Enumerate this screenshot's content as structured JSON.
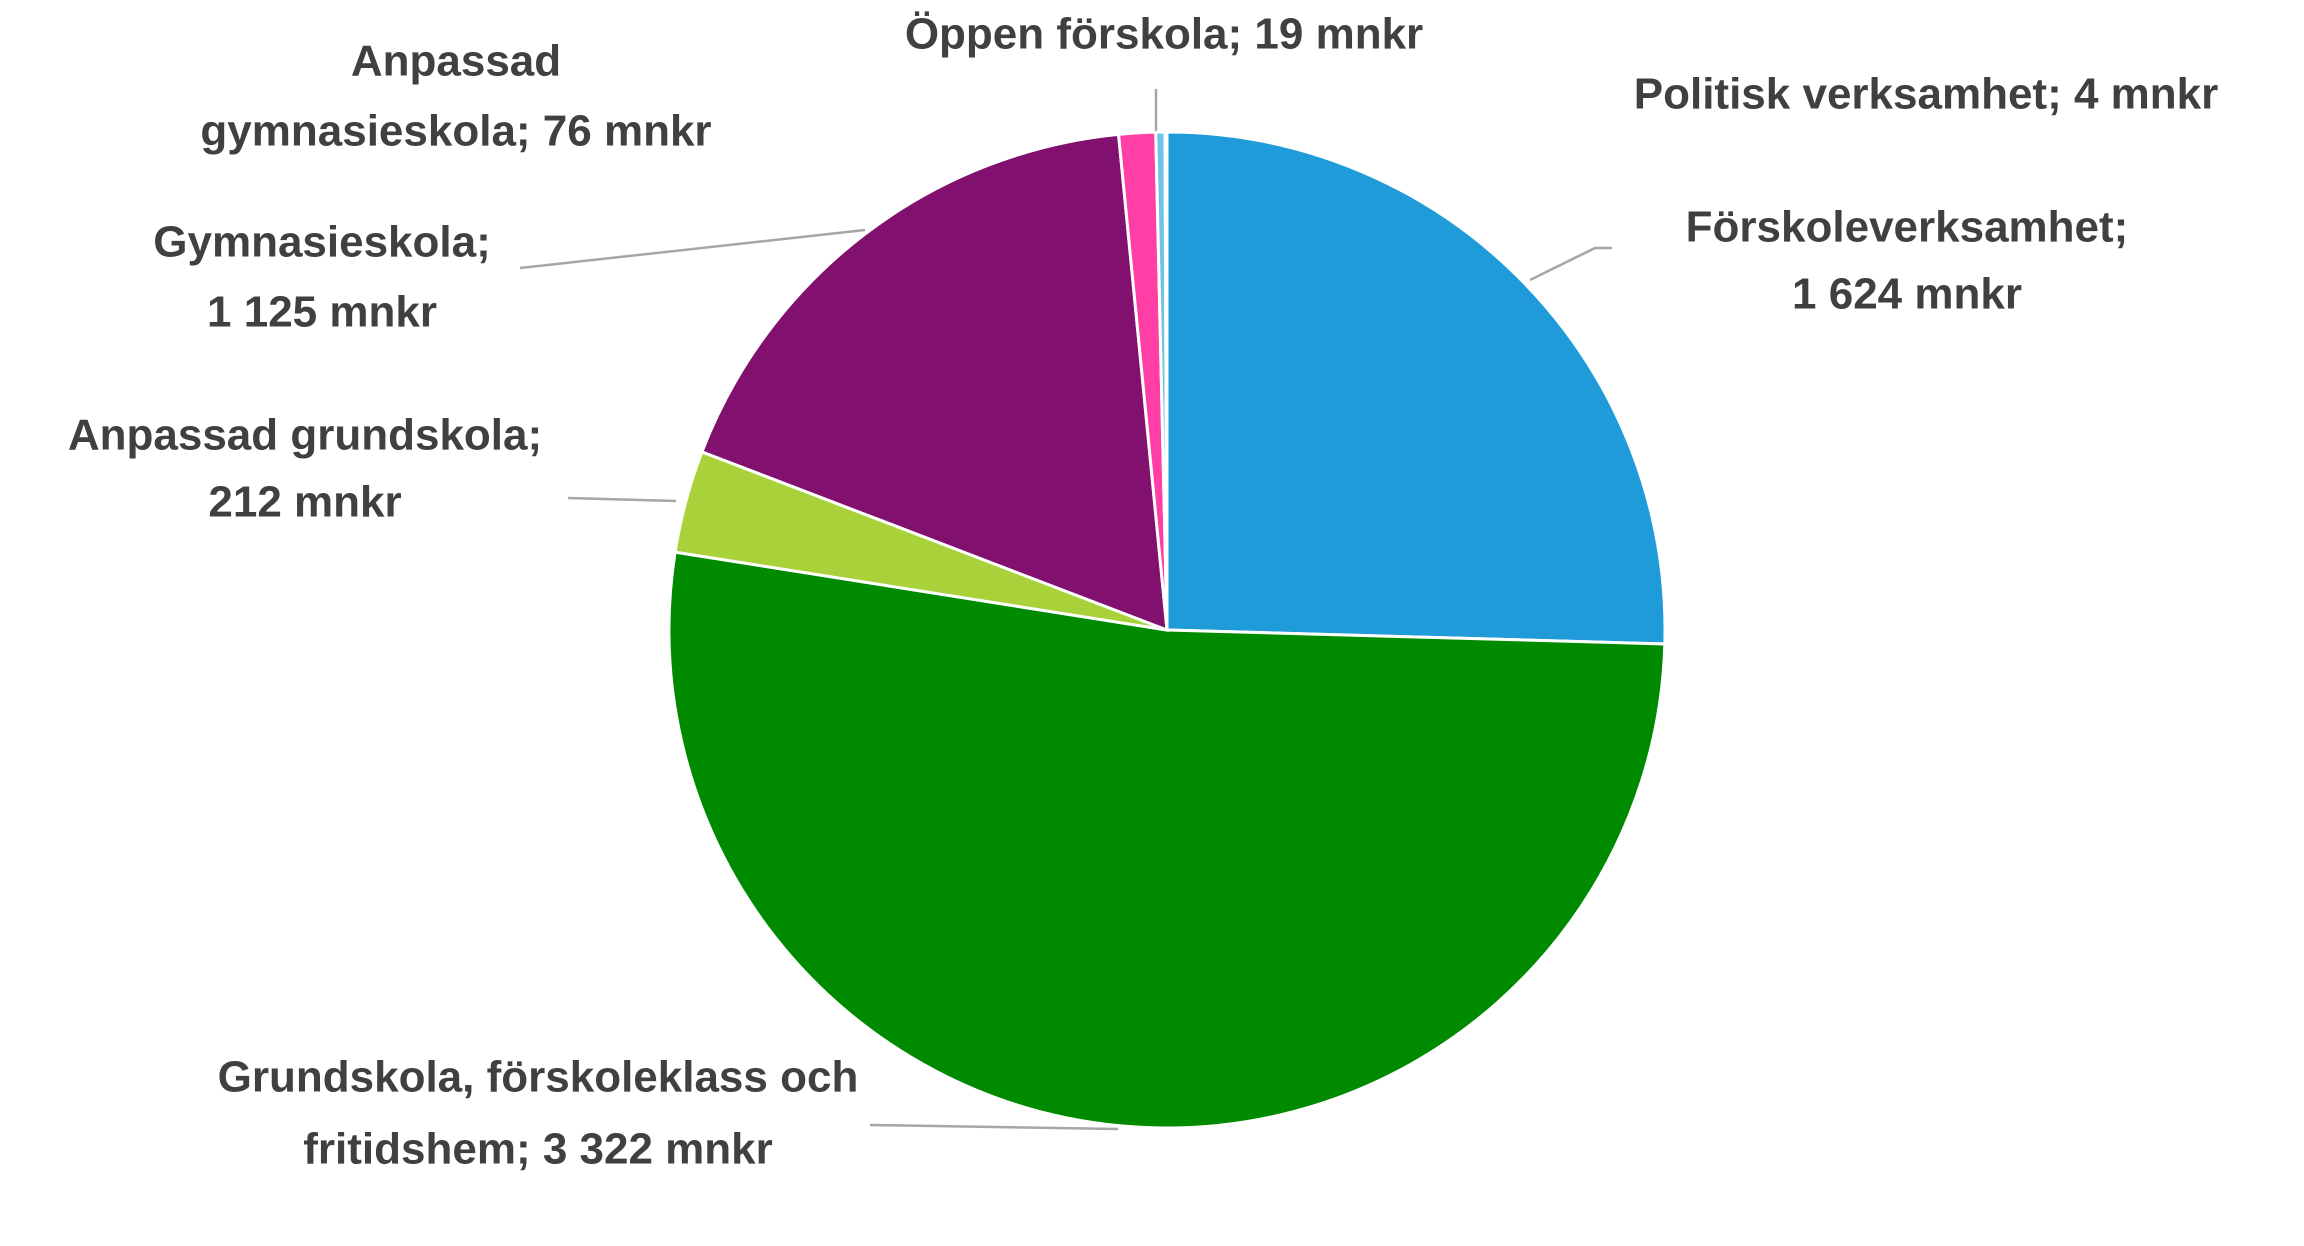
{
  "chart_data": {
    "type": "pie",
    "labels": [
      [
        "Förskoleverksamhet;",
        "1 624 mnkr"
      ],
      [
        "Grundskola, förskoleklass och",
        "fritidshem; 3 322 mnkr"
      ],
      [
        "Anpassad grundskola;",
        "212 mnkr"
      ],
      [
        "Gymnasieskola;",
        "1 125 mnkr"
      ],
      [
        "Anpassad",
        "gymnasieskola; 76 mnkr"
      ],
      [
        "Öppen förskola; 19 mnkr"
      ],
      [
        "Politisk verksamhet; 4 mnkr"
      ]
    ],
    "values": [
      1624,
      3322,
      212,
      1125,
      76,
      19,
      4
    ],
    "colors": [
      "#1f9bd9",
      "#008a00",
      "#a8d13a",
      "#82106e",
      "#ff3fa5",
      "#6ec3ea",
      "#f2b200"
    ]
  }
}
